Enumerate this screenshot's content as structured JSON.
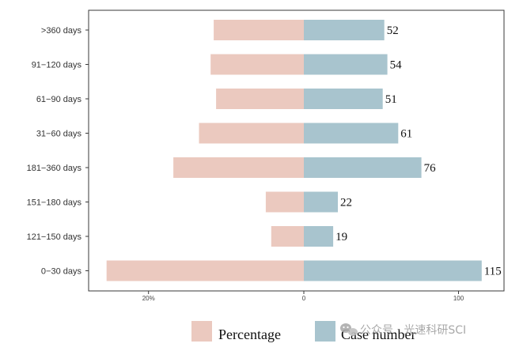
{
  "chart_data": {
    "type": "bar",
    "orientation": "horizontal-diverging",
    "categories": [
      ">360 days",
      "91−120 days",
      "61−90 days",
      "31−60 days",
      "181−360 days",
      "151−180 days",
      "121−150 days",
      "0−30 days"
    ],
    "series": [
      {
        "name": "Percentage",
        "side": "left",
        "values": [
          0.116,
          0.12,
          0.113,
          0.135,
          0.168,
          0.049,
          0.042,
          0.254
        ],
        "color": "#ebc9bf"
      },
      {
        "name": "Case number",
        "side": "right",
        "values": [
          52,
          54,
          51,
          61,
          76,
          22,
          19,
          115
        ],
        "color": "#a8c4ce"
      }
    ],
    "data_labels": [
      "52",
      "54",
      "51",
      "61",
      "76",
      "22",
      "19",
      "115"
    ],
    "x_ticks": [
      {
        "label": "20%",
        "value": -0.2
      },
      {
        "label": "0",
        "value": 0
      },
      {
        "label": "100",
        "value": 100
      }
    ],
    "legend": {
      "position": "bottom"
    },
    "grid": false
  },
  "watermark": {
    "text": "公众号 · 光速科研SCI",
    "icon": "wechat-icon"
  }
}
